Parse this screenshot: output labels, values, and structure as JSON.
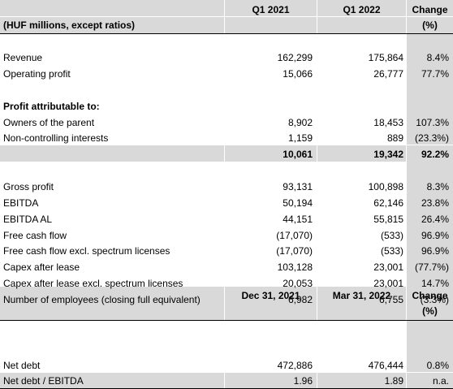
{
  "header": {
    "col1": "Q1 2021",
    "col2": "Q1 2022",
    "change": "Change",
    "pct": "(%)",
    "units": "(HUF millions, except ratios)"
  },
  "rows": {
    "revenue": {
      "label": "Revenue",
      "v1": "162,299",
      "v2": "175,864",
      "chg": "8.4%"
    },
    "op_profit": {
      "label": "Operating profit",
      "v1": "15,066",
      "v2": "26,777",
      "chg": "77.7%"
    },
    "attrib_heading": {
      "label": "Profit attributable to:"
    },
    "owners": {
      "label": "Owners of the parent",
      "v1": "8,902",
      "v2": "18,453",
      "chg": "107.3%"
    },
    "nci": {
      "label": "Non-controlling interests",
      "v1": "1,159",
      "v2": "889",
      "chg": "(23.3%)"
    },
    "total": {
      "v1": "10,061",
      "v2": "19,342",
      "chg": "92.2%"
    },
    "gross_profit": {
      "label": "Gross profit",
      "v1": "93,131",
      "v2": "100,898",
      "chg": "8.3%"
    },
    "ebitda": {
      "label": "EBITDA",
      "v1": "50,194",
      "v2": "62,146",
      "chg": "23.8%"
    },
    "ebitda_al": {
      "label": "EBITDA AL",
      "v1": "44,151",
      "v2": "55,815",
      "chg": "26.4%"
    },
    "fcf": {
      "label": "Free cash flow",
      "v1": "(17,070)",
      "v2": "(533)",
      "chg": "96.9%"
    },
    "fcf_excl": {
      "label": "Free cash flow excl. spectrum licenses",
      "v1": "(17,070)",
      "v2": "(533)",
      "chg": "96.9%"
    },
    "capex": {
      "label": "Capex after lease",
      "v1": "103,128",
      "v2": "23,001",
      "chg": "(77.7%)"
    },
    "capex_excl": {
      "label": "Capex after lease excl. spectrum licenses",
      "v1": "20,053",
      "v2": "23,001",
      "chg": "14.7%"
    },
    "employees": {
      "label": "Number of employees (closing full equivalent)",
      "v1": "6,982",
      "v2": "6,755",
      "chg": "(3.3%)"
    }
  },
  "header2": {
    "col1": "Dec 31, 2021",
    "col2": "Mar 31, 2022",
    "change": "Change",
    "pct": "(%)"
  },
  "rows2": {
    "net_debt": {
      "label": "Net debt",
      "v1": "472,886",
      "v2": "476,444",
      "chg": "0.8%"
    },
    "nd_ebitda": {
      "label": "Net debt / EBITDA",
      "v1": "1.96",
      "v2": "1.89",
      "chg": "n.a."
    }
  },
  "colors": {
    "shade": "#d9d9d9",
    "border": "#000000"
  }
}
